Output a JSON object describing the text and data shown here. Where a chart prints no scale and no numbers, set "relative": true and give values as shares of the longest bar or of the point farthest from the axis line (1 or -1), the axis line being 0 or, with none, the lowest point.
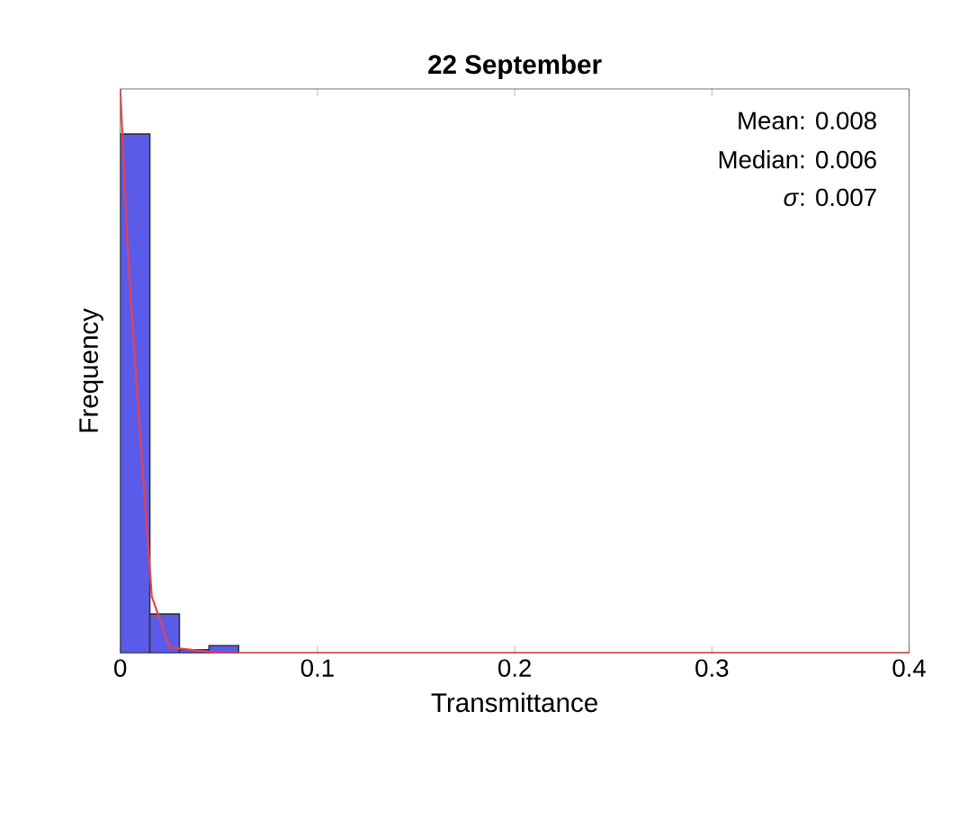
{
  "chart_data": {
    "type": "histogram",
    "title": "22 September",
    "xlabel": "Transmittance",
    "ylabel": "Frequency",
    "relative": true,
    "bins": [
      0,
      0.015,
      0.03,
      0.045,
      0.06
    ],
    "values": [
      0.92,
      0.069,
      0.006,
      0.013
    ],
    "color": "#5b5bea",
    "series": [
      {
        "type": "line",
        "color": "#e8424a",
        "x": [
          0,
          0.004,
          0.0088,
          0.016,
          0.025,
          0.05,
          0.4
        ],
        "values": [
          1,
          0.7,
          0.45,
          0.1,
          0.01,
          0,
          0
        ]
      }
    ],
    "xlim": [
      0,
      0.4
    ],
    "xticks": [
      0,
      0.1,
      0.2,
      0.3,
      0.4
    ],
    "tick_labels": "x",
    "annotations": [
      "Mean:  0.008",
      "Median: 0.006",
      "*σ*:  0.007"
    ]
  }
}
